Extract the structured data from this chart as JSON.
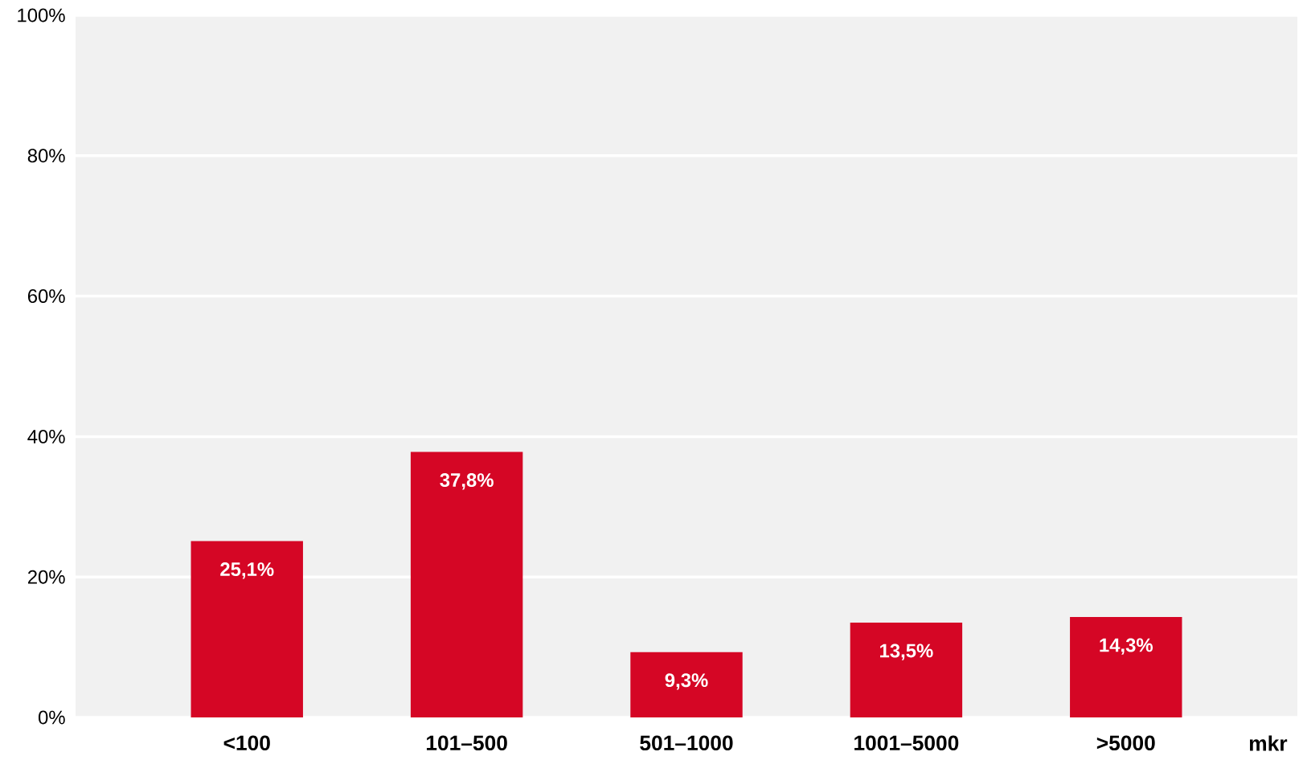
{
  "chart_data": {
    "type": "bar",
    "xlabel": "mkr",
    "categories": [
      "<100",
      "101–500",
      "501–1000",
      "1001–5000",
      ">5000"
    ],
    "values": [
      25.1,
      37.8,
      9.3,
      13.5,
      14.3
    ],
    "value_labels": [
      "25,1%",
      "37,8%",
      "9,3%",
      "13,5%",
      "14,3%"
    ],
    "color": "#d50625",
    "ylim": [
      0,
      100
    ],
    "yticks": [
      {
        "value": 0,
        "label": "0%"
      },
      {
        "value": 20,
        "label": "20%"
      },
      {
        "value": 40,
        "label": "40%"
      },
      {
        "value": 60,
        "label": "60%"
      },
      {
        "value": 80,
        "label": "80%"
      },
      {
        "value": 100,
        "label": "100%"
      }
    ],
    "grid": "y"
  }
}
